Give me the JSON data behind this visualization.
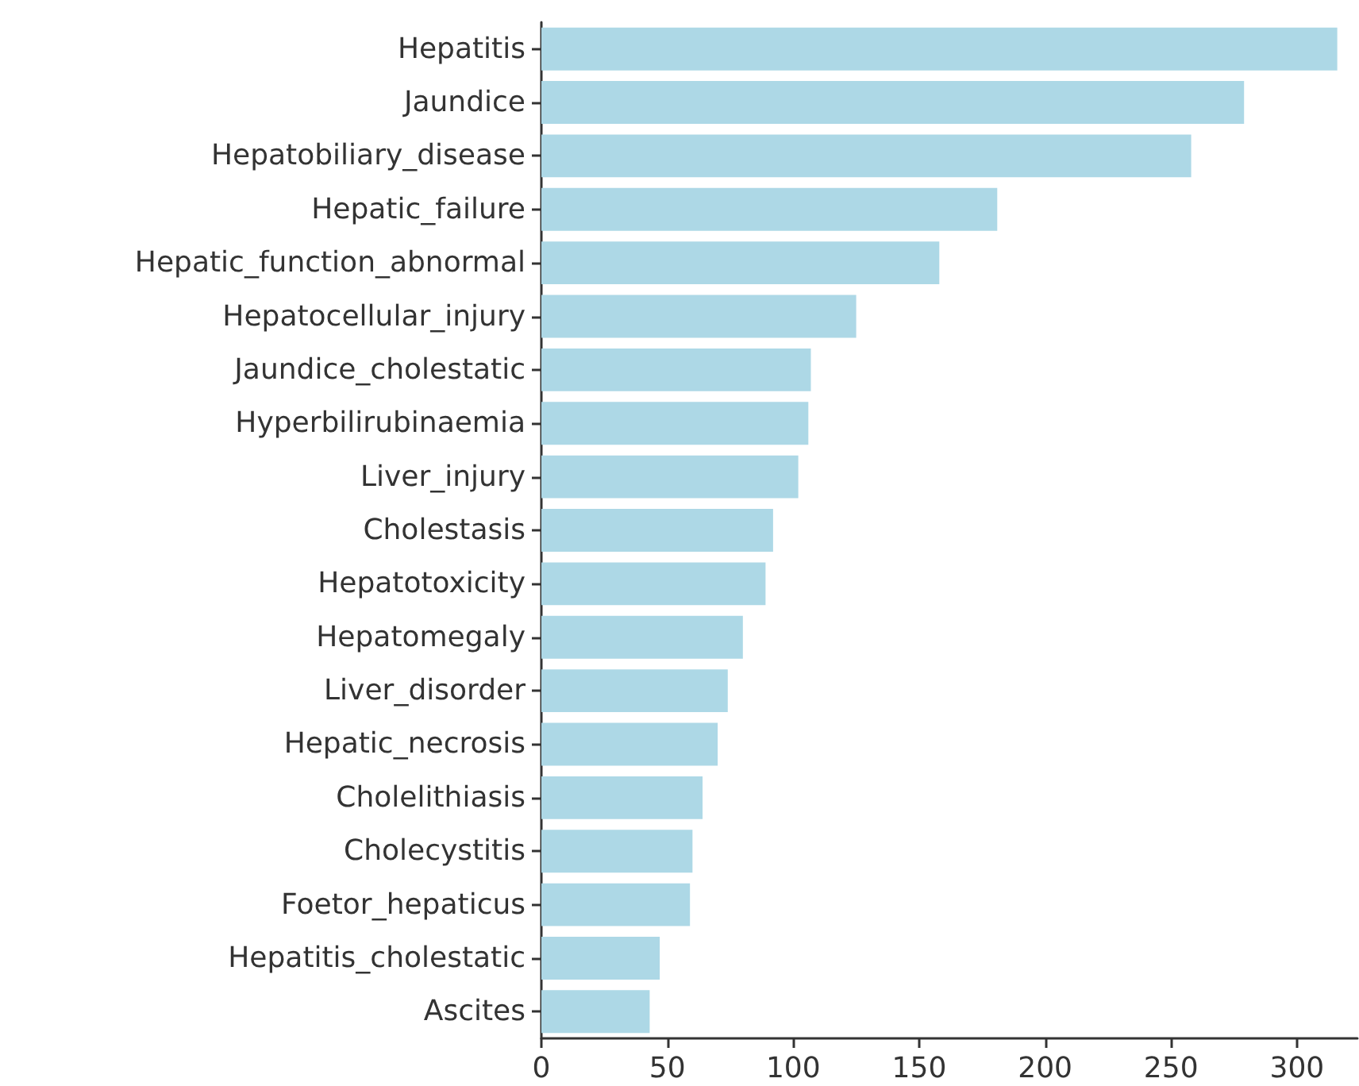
{
  "chart_data": {
    "type": "bar",
    "orientation": "horizontal",
    "categories": [
      "Hepatitis",
      "Jaundice",
      "Hepatobiliary_disease",
      "Hepatic_failure",
      "Hepatic_function_abnormal",
      "Hepatocellular_injury",
      "Jaundice_cholestatic",
      "Hyperbilirubinaemia",
      "Liver_injury",
      "Cholestasis",
      "Hepatotoxicity",
      "Hepatomegaly",
      "Liver_disorder",
      "Hepatic_necrosis",
      "Cholelithiasis",
      "Cholecystitis",
      "Foetor_hepaticus",
      "Hepatitis_cholestatic",
      "Ascites"
    ],
    "values": [
      316,
      279,
      258,
      181,
      158,
      125,
      107,
      106,
      102,
      92,
      89,
      80,
      74,
      70,
      64,
      60,
      59,
      47,
      43
    ],
    "color": "#add8e6",
    "xlim": [
      0,
      324
    ],
    "xticks": [
      0,
      50,
      100,
      150,
      200,
      250,
      300
    ]
  }
}
